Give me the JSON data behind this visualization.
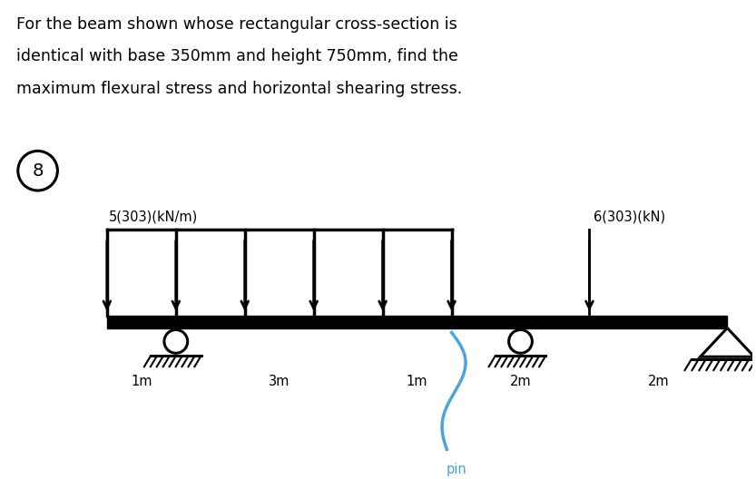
{
  "title_lines": [
    "For the beam shown whose rectangular cross-section is",
    "identical with base 350mm and height 750mm, find the",
    "maximum flexural stress and horizontal shearing stress."
  ],
  "problem_number": "8",
  "distributed_load_label": "5(303)(kN/m)",
  "point_load_label": "6(303)(kN)",
  "beam_color": "#000000",
  "pin_color": "#4ca3dd",
  "pin_label": "pin",
  "segments": [
    "1m",
    "3m",
    "1m",
    "2m",
    "2m"
  ],
  "background_color": "#ffffff",
  "seg_lengths": [
    1,
    3,
    1,
    2,
    2
  ],
  "figsize": [
    8.33,
    5.28
  ],
  "dpi": 100
}
